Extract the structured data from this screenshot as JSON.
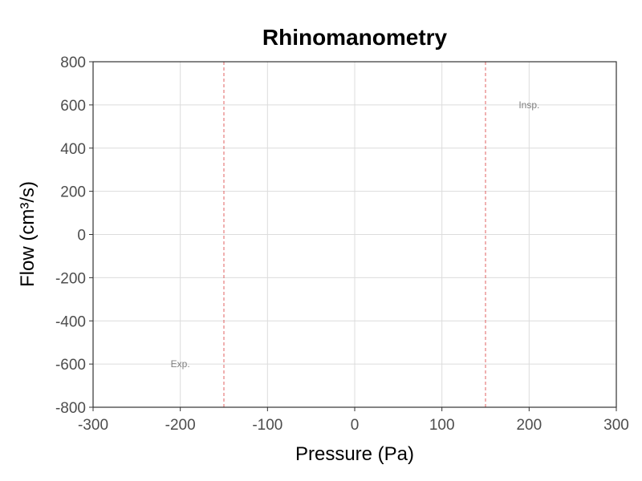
{
  "chart_data": {
    "type": "line",
    "title": "Rhinomanometry",
    "xlabel": "Pressure (Pa)",
    "ylabel": "Flow (cm³/s)",
    "xlim": [
      -300,
      300
    ],
    "ylim": [
      -800,
      800
    ],
    "xticks": [
      -300,
      -200,
      -100,
      0,
      100,
      200,
      300
    ],
    "yticks": [
      -800,
      -600,
      -400,
      -200,
      0,
      200,
      400,
      600,
      800
    ],
    "grid": true,
    "series": [],
    "reference_lines": [
      {
        "x": -150,
        "style": "dashed",
        "color": "#e06060"
      },
      {
        "x": 150,
        "style": "dashed",
        "color": "#e06060"
      }
    ],
    "annotations": [
      {
        "text": "Exp.",
        "x": -200,
        "y": -600
      },
      {
        "text": "Insp.",
        "x": 200,
        "y": 600
      }
    ]
  },
  "colors": {
    "grid": "#dcdcdc",
    "axis": "#333333",
    "reference_line": "#e06060"
  }
}
